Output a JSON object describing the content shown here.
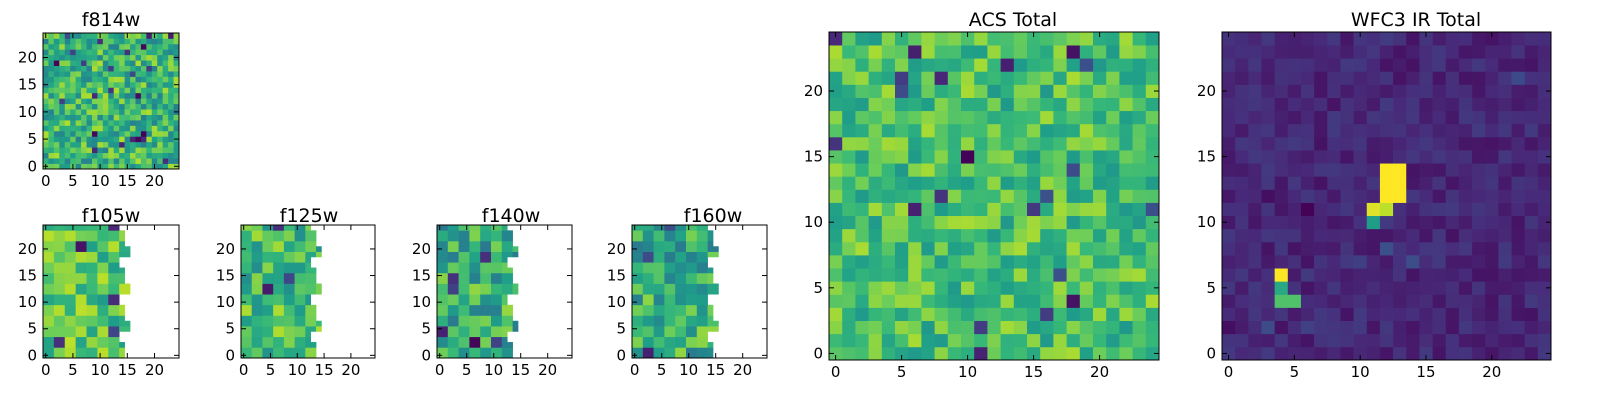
{
  "chart_data": [
    {
      "type": "heatmap",
      "title": "f814w",
      "x_ticks": [
        "0",
        "5",
        "10",
        "15",
        "20"
      ],
      "y_ticks": [
        "0",
        "5",
        "10",
        "15",
        "20"
      ],
      "xlim": [
        -0.5,
        24.5
      ],
      "ylim": [
        -0.5,
        24.5
      ],
      "grid_size": 25,
      "pixel_block": 1,
      "coverage_columns": 25,
      "colormap": "viridis",
      "value_range": [
        0.0,
        1.0
      ],
      "value_mean": 0.66,
      "value_spread": 0.22
    },
    {
      "type": "heatmap",
      "title": "f105w",
      "x_ticks": [
        "0",
        "5",
        "10",
        "15",
        "20"
      ],
      "y_ticks": [
        "0",
        "5",
        "10",
        "15",
        "20"
      ],
      "xlim": [
        -0.5,
        24.5
      ],
      "ylim": [
        -0.5,
        24.5
      ],
      "grid_size": 25,
      "pixel_block": 2,
      "coverage_columns": 15,
      "colormap": "viridis",
      "value_range": [
        0.0,
        1.0
      ],
      "value_mean": 0.72,
      "value_spread": 0.18
    },
    {
      "type": "heatmap",
      "title": "f125w",
      "x_ticks": [
        "0",
        "5",
        "10",
        "15",
        "20"
      ],
      "y_ticks": [
        "0",
        "5",
        "10",
        "15",
        "20"
      ],
      "xlim": [
        -0.5,
        24.5
      ],
      "ylim": [
        -0.5,
        24.5
      ],
      "grid_size": 25,
      "pixel_block": 2,
      "coverage_columns": 14,
      "colormap": "viridis",
      "value_range": [
        0.0,
        1.0
      ],
      "value_mean": 0.68,
      "value_spread": 0.2
    },
    {
      "type": "heatmap",
      "title": "f140w",
      "x_ticks": [
        "0",
        "5",
        "10",
        "15",
        "20"
      ],
      "y_ticks": [
        "0",
        "5",
        "10",
        "15",
        "20"
      ],
      "xlim": [
        -0.5,
        24.5
      ],
      "ylim": [
        -0.5,
        24.5
      ],
      "grid_size": 25,
      "pixel_block": 2,
      "coverage_columns": 14,
      "colormap": "viridis",
      "value_range": [
        0.0,
        1.0
      ],
      "value_mean": 0.62,
      "value_spread": 0.22
    },
    {
      "type": "heatmap",
      "title": "f160w",
      "x_ticks": [
        "0",
        "5",
        "10",
        "15",
        "20"
      ],
      "y_ticks": [
        "0",
        "5",
        "10",
        "15",
        "20"
      ],
      "xlim": [
        -0.5,
        24.5
      ],
      "ylim": [
        -0.5,
        24.5
      ],
      "grid_size": 25,
      "pixel_block": 2,
      "coverage_columns": 15,
      "colormap": "viridis",
      "value_range": [
        0.0,
        1.0
      ],
      "value_mean": 0.62,
      "value_spread": 0.22
    },
    {
      "type": "heatmap",
      "title": "ACS Total",
      "x_ticks": [
        "0",
        "5",
        "10",
        "15",
        "20"
      ],
      "y_ticks": [
        "0",
        "5",
        "10",
        "15",
        "20"
      ],
      "xlim": [
        -0.5,
        24.5
      ],
      "ylim": [
        -0.5,
        24.5
      ],
      "grid_size": 25,
      "pixel_block": 1,
      "coverage_columns": 25,
      "colormap": "viridis",
      "value_range": [
        0.0,
        1.0
      ],
      "value_mean": 0.7,
      "value_spread": 0.17
    },
    {
      "type": "heatmap",
      "title": "WFC3 IR Total",
      "x_ticks": [
        "0",
        "5",
        "10",
        "15",
        "20"
      ],
      "y_ticks": [
        "0",
        "5",
        "10",
        "15",
        "20"
      ],
      "xlim": [
        -0.5,
        24.5
      ],
      "ylim": [
        -0.5,
        24.5
      ],
      "grid_size": 25,
      "pixel_block": 1,
      "coverage_columns": 25,
      "colormap": "viridis",
      "value_range": [
        0.0,
        1.0
      ],
      "value_mean": 0.11,
      "value_spread": 0.06,
      "bright_pixels": [
        {
          "x": 12,
          "y": 14,
          "value": 1.0
        },
        {
          "x": 13,
          "y": 14,
          "value": 1.0
        },
        {
          "x": 12,
          "y": 13,
          "value": 1.0
        },
        {
          "x": 13,
          "y": 13,
          "value": 1.0
        },
        {
          "x": 12,
          "y": 12,
          "value": 1.0
        },
        {
          "x": 13,
          "y": 12,
          "value": 1.0
        },
        {
          "x": 11,
          "y": 11,
          "value": 0.95
        },
        {
          "x": 12,
          "y": 11,
          "value": 0.9
        },
        {
          "x": 11,
          "y": 10,
          "value": 0.55
        },
        {
          "x": 4,
          "y": 6,
          "value": 1.0
        },
        {
          "x": 4,
          "y": 5,
          "value": 0.6
        },
        {
          "x": 4,
          "y": 4,
          "value": 0.72
        },
        {
          "x": 5,
          "y": 4,
          "value": 0.72
        }
      ]
    }
  ]
}
